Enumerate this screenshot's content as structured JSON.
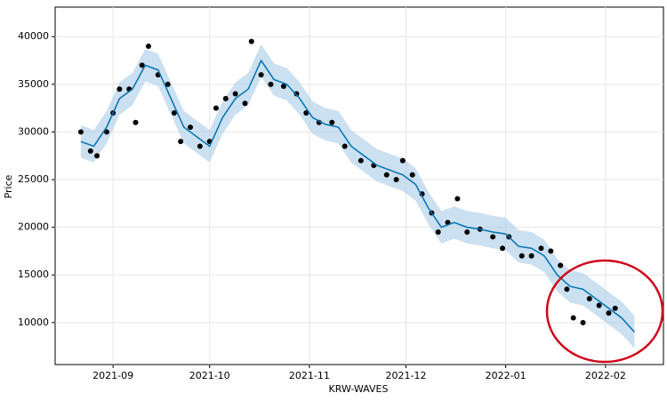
{
  "chart_data": {
    "type": "forecast",
    "xlabel": "KRW-WAVES",
    "ylabel": "Price",
    "xlim": [
      -18,
      171
    ],
    "ylim": [
      5600,
      43100
    ],
    "xticks": [
      {
        "value": 0,
        "label": "2021-09"
      },
      {
        "value": 30,
        "label": "2021-10"
      },
      {
        "value": 61,
        "label": "2021-11"
      },
      {
        "value": 91,
        "label": "2021-12"
      },
      {
        "value": 122,
        "label": "2022-01"
      },
      {
        "value": 153,
        "label": "2022-02"
      }
    ],
    "yticks": [
      10000,
      15000,
      20000,
      25000,
      30000,
      35000,
      40000
    ],
    "grid": true,
    "observed": {
      "color": "#000000",
      "x": [
        -10,
        -7,
        -5,
        -2,
        0,
        2,
        5,
        7,
        9,
        11,
        14,
        17,
        19,
        21,
        24,
        27,
        30,
        32,
        35,
        38,
        41,
        43,
        46,
        49,
        53,
        57,
        60,
        64,
        68,
        72,
        77,
        81,
        85,
        88,
        90,
        93,
        96,
        99,
        101,
        104,
        107,
        110,
        114,
        118,
        121,
        123,
        127,
        130,
        133,
        136,
        139,
        141,
        143,
        146,
        148,
        151,
        154,
        156
      ],
      "values": [
        30000,
        28000,
        27500,
        30000,
        32000,
        34500,
        34500,
        31000,
        37000,
        39000,
        36000,
        35000,
        32000,
        29000,
        30500,
        28500,
        29000,
        32500,
        33500,
        34000,
        33000,
        39500,
        36000,
        35000,
        34800,
        34000,
        32000,
        31000,
        31000,
        28500,
        27000,
        26500,
        25500,
        25000,
        27000,
        25500,
        23500,
        21500,
        19500,
        20500,
        23000,
        19500,
        19800,
        19000,
        17800,
        19000,
        17000,
        17000,
        17800,
        17500,
        16000,
        13500,
        10500,
        10000,
        12500,
        11800,
        11000,
        11500
      ]
    },
    "forecast": {
      "color": "#0072b2",
      "band_color": "#a8cce6",
      "x": [
        -10,
        -6,
        -2,
        2,
        6,
        10,
        14,
        18,
        22,
        26,
        30,
        34,
        38,
        42,
        46,
        50,
        54,
        58,
        62,
        66,
        70,
        74,
        78,
        82,
        86,
        90,
        94,
        98,
        102,
        106,
        110,
        114,
        118,
        122,
        126,
        130,
        134,
        138,
        142,
        146,
        150,
        154,
        158,
        162
      ],
      "values": [
        29000,
        28500,
        30500,
        33500,
        34500,
        37000,
        36500,
        33500,
        30500,
        29500,
        28500,
        31500,
        33500,
        34500,
        37500,
        35500,
        35000,
        33500,
        31500,
        30800,
        30500,
        28500,
        27500,
        26500,
        26000,
        25500,
        24500,
        22000,
        20000,
        20500,
        20000,
        19800,
        19500,
        19300,
        18000,
        17800,
        17000,
        15000,
        13800,
        13500,
        12500,
        11500,
        10500,
        9000
      ],
      "lower": [
        27300,
        26800,
        28800,
        31800,
        32800,
        35300,
        34800,
        31800,
        28800,
        27800,
        26800,
        29800,
        31800,
        32800,
        35800,
        33800,
        33300,
        31800,
        29800,
        29100,
        28800,
        26800,
        25800,
        24800,
        24300,
        23800,
        22800,
        20300,
        18300,
        18800,
        18300,
        18100,
        17800,
        17600,
        16300,
        16100,
        15300,
        13300,
        12100,
        11800,
        10800,
        9800,
        8800,
        7300
      ],
      "upper": [
        30700,
        30200,
        32200,
        35200,
        36200,
        38700,
        38200,
        35200,
        32200,
        31200,
        30200,
        33200,
        35200,
        36200,
        39200,
        37200,
        36700,
        35200,
        33200,
        32500,
        32200,
        30200,
        29200,
        28200,
        27700,
        27200,
        26200,
        23700,
        21700,
        22200,
        21700,
        21500,
        21200,
        21000,
        19700,
        19500,
        18700,
        16700,
        15500,
        15200,
        14200,
        13200,
        12200,
        10700
      ]
    }
  }
}
